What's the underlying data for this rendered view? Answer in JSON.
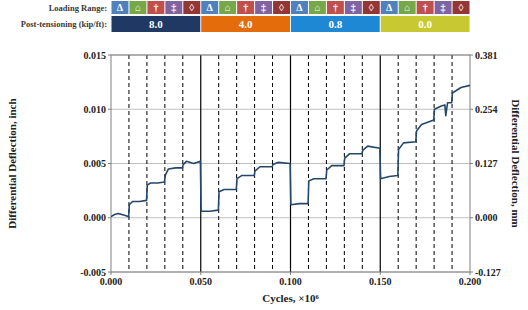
{
  "chart_data": {
    "type": "line",
    "header": {
      "loading_label": "Loading Range:",
      "post_tensioning_label": "Post-tensioning (kip/ft):",
      "loading_ranges": [
        {
          "symbol": "Δ",
          "color": "#4f81bd"
        },
        {
          "symbol": "⌂",
          "color": "#77a847"
        },
        {
          "symbol": "†",
          "color": "#c0504d"
        },
        {
          "symbol": "‡",
          "color": "#8064a2"
        },
        {
          "symbol": "◊",
          "color": "#943634"
        }
      ],
      "segments": [
        {
          "label": "8.0",
          "color": "#1f3864",
          "x": [
            0,
            0.05
          ]
        },
        {
          "label": "4.0",
          "color": "#e46c0a",
          "x": [
            0.05,
            0.1
          ]
        },
        {
          "label": "0.8",
          "color": "#1f88d4",
          "x": [
            0.1,
            0.15
          ]
        },
        {
          "label": "0.0",
          "color": "#c8c832",
          "x": [
            0.15,
            0.2
          ]
        }
      ]
    },
    "x_label": "Cycles, ×10⁶",
    "y_label": "Differential Deflection, inch",
    "y2_label": "Differential Deflection, mm",
    "xlim": [
      0,
      0.2
    ],
    "xticks": [
      {
        "value": 0,
        "label": "0.000"
      },
      {
        "value": 0.05,
        "label": "0.050"
      },
      {
        "value": 0.1,
        "label": "0.100"
      },
      {
        "value": 0.15,
        "label": "0.150"
      },
      {
        "value": 0.2,
        "label": "0.200"
      }
    ],
    "ylim": [
      -0.005,
      0.015
    ],
    "yticks": [
      -0.005,
      {
        "value": 0,
        "label": "0.000"
      },
      0.005,
      {
        "value": 0.01,
        "label": "0.010"
      },
      0.015
    ],
    "y2lim": [
      -0.127,
      0.381
    ],
    "y2ticks": [
      -0.127,
      {
        "value": 0,
        "label": "0.000"
      },
      0.127,
      0.254,
      0.381
    ],
    "grid": true,
    "x": [
      0,
      0.002,
      0.004,
      0.006,
      0.008,
      0.0098,
      0.0102,
      0.012,
      0.016,
      0.0198,
      0.0202,
      0.022,
      0.026,
      0.0298,
      0.0302,
      0.032,
      0.036,
      0.0398,
      0.0402,
      0.042,
      0.046,
      0.0498,
      0.0502,
      0.055,
      0.0598,
      0.0602,
      0.063,
      0.0698,
      0.0702,
      0.073,
      0.0798,
      0.0802,
      0.083,
      0.0898,
      0.0902,
      0.093,
      0.0998,
      0.1002,
      0.105,
      0.1098,
      0.1102,
      0.113,
      0.1198,
      0.1202,
      0.123,
      0.1298,
      0.1302,
      0.133,
      0.1398,
      0.1402,
      0.143,
      0.1498,
      0.1502,
      0.155,
      0.1598,
      0.1602,
      0.163,
      0.1698,
      0.1702,
      0.173,
      0.1798,
      0.1802,
      0.184,
      0.186,
      0.1865,
      0.1875,
      0.1898,
      0.1902,
      0.195,
      0.2
    ],
    "series": [
      {
        "name": "Differential Deflection",
        "color": "#24476b",
        "values": [
          0.0001,
          0.0003,
          0.0004,
          0.0003,
          0.0002,
          0.0001,
          0.0012,
          0.0015,
          0.0015,
          0.0016,
          0.003,
          0.0032,
          0.0032,
          0.0033,
          0.0039,
          0.0045,
          0.0046,
          0.0046,
          0.0049,
          0.0052,
          0.005,
          0.0052,
          0.0006,
          0.0006,
          0.0007,
          0.0024,
          0.0026,
          0.0026,
          0.0036,
          0.0039,
          0.0039,
          0.0043,
          0.0047,
          0.0047,
          0.0049,
          0.0051,
          0.005,
          0.0012,
          0.0013,
          0.0013,
          0.0034,
          0.0036,
          0.0036,
          0.0044,
          0.0048,
          0.0048,
          0.0055,
          0.0059,
          0.0059,
          0.0062,
          0.0066,
          0.0064,
          0.0036,
          0.0038,
          0.0039,
          0.0063,
          0.0069,
          0.007,
          0.008,
          0.0086,
          0.009,
          0.01,
          0.0103,
          0.0104,
          0.0094,
          0.0106,
          0.0106,
          0.0115,
          0.012,
          0.0122
        ]
      }
    ]
  }
}
